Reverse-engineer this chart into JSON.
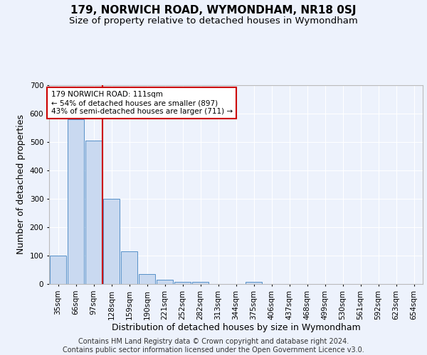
{
  "title": "179, NORWICH ROAD, WYMONDHAM, NR18 0SJ",
  "subtitle": "Size of property relative to detached houses in Wymondham",
  "xlabel": "Distribution of detached houses by size in Wymondham",
  "ylabel": "Number of detached properties",
  "bar_labels": [
    "35sqm",
    "66sqm",
    "97sqm",
    "128sqm",
    "159sqm",
    "190sqm",
    "221sqm",
    "252sqm",
    "282sqm",
    "313sqm",
    "344sqm",
    "375sqm",
    "406sqm",
    "437sqm",
    "468sqm",
    "499sqm",
    "530sqm",
    "561sqm",
    "592sqm",
    "623sqm",
    "654sqm"
  ],
  "bar_values": [
    100,
    580,
    505,
    300,
    115,
    35,
    15,
    8,
    8,
    0,
    0,
    8,
    0,
    0,
    0,
    0,
    0,
    0,
    0,
    0,
    0
  ],
  "bar_color": "#c9d9f0",
  "bar_edge_color": "#5590c8",
  "property_line_x": 2.5,
  "annotation_text": "179 NORWICH ROAD: 111sqm\n← 54% of detached houses are smaller (897)\n43% of semi-detached houses are larger (711) →",
  "ylim": [
    0,
    700
  ],
  "yticks": [
    0,
    100,
    200,
    300,
    400,
    500,
    600,
    700
  ],
  "title_fontsize": 11,
  "subtitle_fontsize": 9.5,
  "ylabel_fontsize": 9,
  "xlabel_fontsize": 9,
  "tick_fontsize": 7.5,
  "footer_text": "Contains HM Land Registry data © Crown copyright and database right 2024.\nContains public sector information licensed under the Open Government Licence v3.0.",
  "background_color": "#edf2fc",
  "plot_bg_color": "#edf2fc",
  "grid_color": "#ffffff",
  "annotation_box_color": "#ffffff",
  "annotation_box_edge": "#cc0000",
  "red_line_color": "#cc0000",
  "footer_fontsize": 7
}
